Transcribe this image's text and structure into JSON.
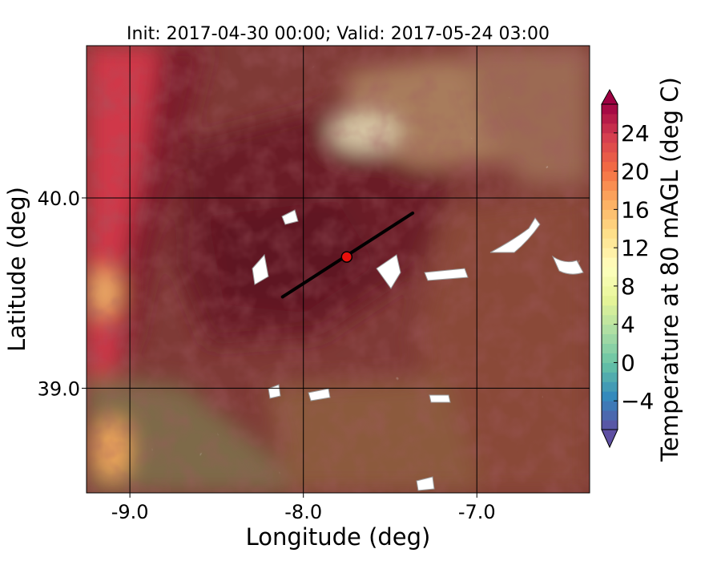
{
  "chart_data": {
    "type": "heatmap",
    "title": "Init: 2017-04-30 00:00; Valid: 2017-05-24 03:00",
    "xlabel": "Longitude (deg)",
    "ylabel": "Latitude (deg)",
    "xlim": [
      -9.25,
      -6.35
    ],
    "ylim": [
      38.45,
      40.8
    ],
    "xticks": [
      -9.0,
      -8.0,
      -7.0
    ],
    "xtick_labels": [
      "-9.0",
      "-8.0",
      "-7.0"
    ],
    "yticks": [
      39.0,
      40.0
    ],
    "ytick_labels": [
      "39.0",
      "40.0"
    ],
    "grid": true,
    "colorbar": {
      "label": "Temperature at 80 mAGL (deg C)",
      "min": -7,
      "max": 27,
      "extend": "both",
      "ticks": [
        -4,
        0,
        4,
        8,
        12,
        16,
        20,
        24
      ],
      "tick_labels": [
        "−4",
        "0",
        "4",
        "8",
        "12",
        "16",
        "20",
        "24"
      ],
      "colormap": "Spectral_r"
    },
    "transect": {
      "start": [
        -8.12,
        39.48
      ],
      "end": [
        -7.37,
        39.92
      ],
      "line_color": "#000000"
    },
    "marker": {
      "lon": -7.75,
      "lat": 39.69,
      "color": "#e8100c"
    }
  }
}
